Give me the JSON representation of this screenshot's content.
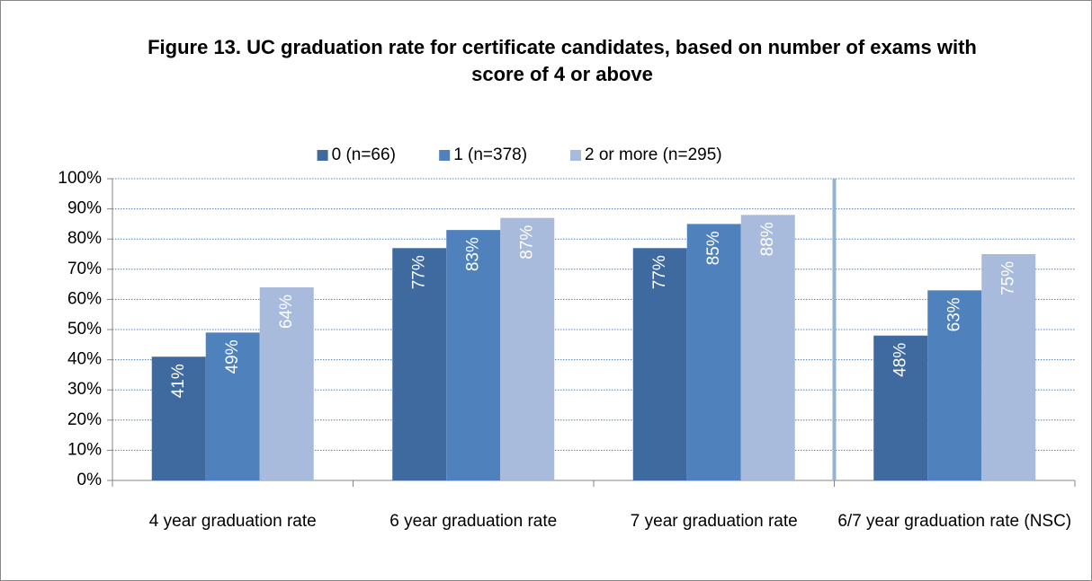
{
  "chart_data": {
    "type": "bar",
    "title": "Figure 13. UC graduation rate for certificate candidates, based on number of exams with score of 4 or above",
    "categories": [
      "4 year graduation rate",
      "6 year graduation rate",
      "7 year graduation rate",
      "6/7 year graduation rate (NSC)"
    ],
    "series": [
      {
        "name": "0 (n=66)",
        "color": "#3f6aa0",
        "values": [
          41,
          77,
          77,
          48
        ],
        "value_labels": [
          "41%",
          "77%",
          "77%",
          "48%"
        ]
      },
      {
        "name": "1 (n=378)",
        "color": "#4f81bd",
        "values": [
          49,
          83,
          85,
          63
        ],
        "value_labels": [
          "49%",
          "83%",
          "85%",
          "63%"
        ]
      },
      {
        "name": "2 or more (n=295)",
        "color": "#a9bbdc",
        "values": [
          64,
          87,
          88,
          75
        ],
        "value_labels": [
          "64%",
          "87%",
          "88%",
          "75%"
        ]
      }
    ],
    "ylim": [
      0,
      100
    ],
    "yticks": [
      {
        "value": 0,
        "label": "0%"
      },
      {
        "value": 10,
        "label": "10%"
      },
      {
        "value": 20,
        "label": "20%"
      },
      {
        "value": 30,
        "label": "30%"
      },
      {
        "value": 40,
        "label": "40%"
      },
      {
        "value": 50,
        "label": "50%"
      },
      {
        "value": 60,
        "label": "60%"
      },
      {
        "value": 70,
        "label": "70%"
      },
      {
        "value": 80,
        "label": "80%"
      },
      {
        "value": 90,
        "label": "90%"
      },
      {
        "value": 100,
        "label": "100%"
      }
    ],
    "grid": true,
    "legend": "top"
  }
}
